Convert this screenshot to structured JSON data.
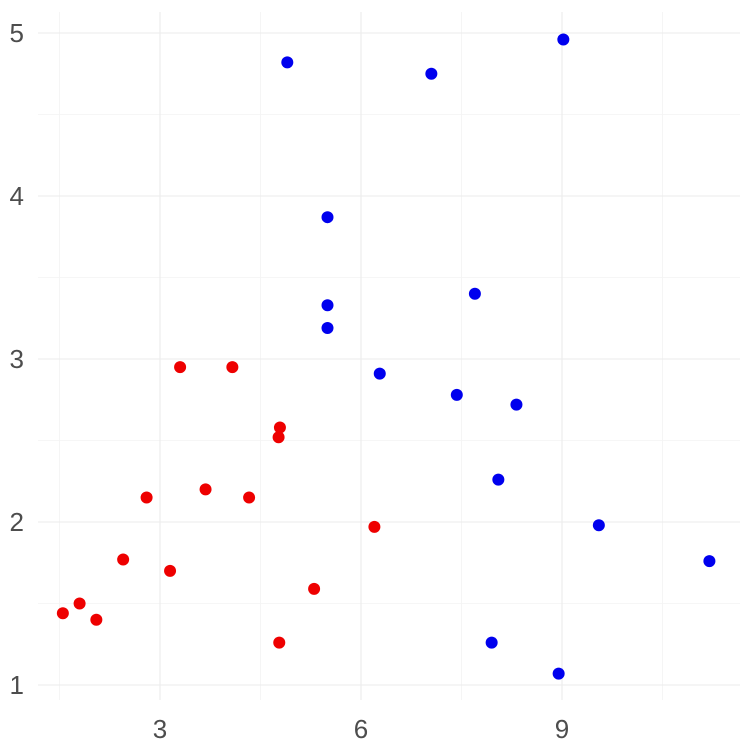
{
  "chart_data": {
    "type": "scatter",
    "title": "",
    "xlabel": "",
    "ylabel": "",
    "xlim": [
      1.5,
      11.2
    ],
    "ylim": [
      0.9,
      5.15
    ],
    "x_ticks": [
      3,
      6,
      9
    ],
    "x_tick_labels": [
      "3",
      "6",
      "9"
    ],
    "y_ticks": [
      1,
      2,
      3,
      4,
      5
    ],
    "y_tick_labels": [
      "1",
      "2",
      "3",
      "4",
      "5"
    ],
    "x_minor_ticks": [
      1.5,
      4.5,
      7.5,
      10.5
    ],
    "y_minor_ticks": [
      1.5,
      2.5,
      3.5,
      4.5
    ],
    "grid": true,
    "legend": "none",
    "series": [
      {
        "color": "#ee0000",
        "points": [
          {
            "x": 1.55,
            "y": 1.44
          },
          {
            "x": 1.8,
            "y": 1.5
          },
          {
            "x": 2.05,
            "y": 1.4
          },
          {
            "x": 2.45,
            "y": 1.77
          },
          {
            "x": 2.8,
            "y": 2.15
          },
          {
            "x": 3.15,
            "y": 1.7
          },
          {
            "x": 3.3,
            "y": 2.95
          },
          {
            "x": 3.68,
            "y": 2.2
          },
          {
            "x": 4.08,
            "y": 2.95
          },
          {
            "x": 4.33,
            "y": 2.15
          },
          {
            "x": 4.77,
            "y": 2.52
          },
          {
            "x": 4.79,
            "y": 2.58
          },
          {
            "x": 4.78,
            "y": 1.26
          },
          {
            "x": 5.3,
            "y": 1.59
          },
          {
            "x": 6.2,
            "y": 1.97
          }
        ]
      },
      {
        "color": "#0000ee",
        "points": [
          {
            "x": 4.9,
            "y": 4.82
          },
          {
            "x": 5.5,
            "y": 3.87
          },
          {
            "x": 5.5,
            "y": 3.33
          },
          {
            "x": 5.5,
            "y": 3.19
          },
          {
            "x": 6.28,
            "y": 2.91
          },
          {
            "x": 7.05,
            "y": 4.75
          },
          {
            "x": 7.43,
            "y": 2.78
          },
          {
            "x": 7.7,
            "y": 3.4
          },
          {
            "x": 7.95,
            "y": 1.26
          },
          {
            "x": 8.05,
            "y": 2.26
          },
          {
            "x": 8.32,
            "y": 2.72
          },
          {
            "x": 8.95,
            "y": 1.07
          },
          {
            "x": 9.02,
            "y": 4.96
          },
          {
            "x": 9.55,
            "y": 1.98
          },
          {
            "x": 11.2,
            "y": 1.76
          }
        ]
      }
    ]
  }
}
